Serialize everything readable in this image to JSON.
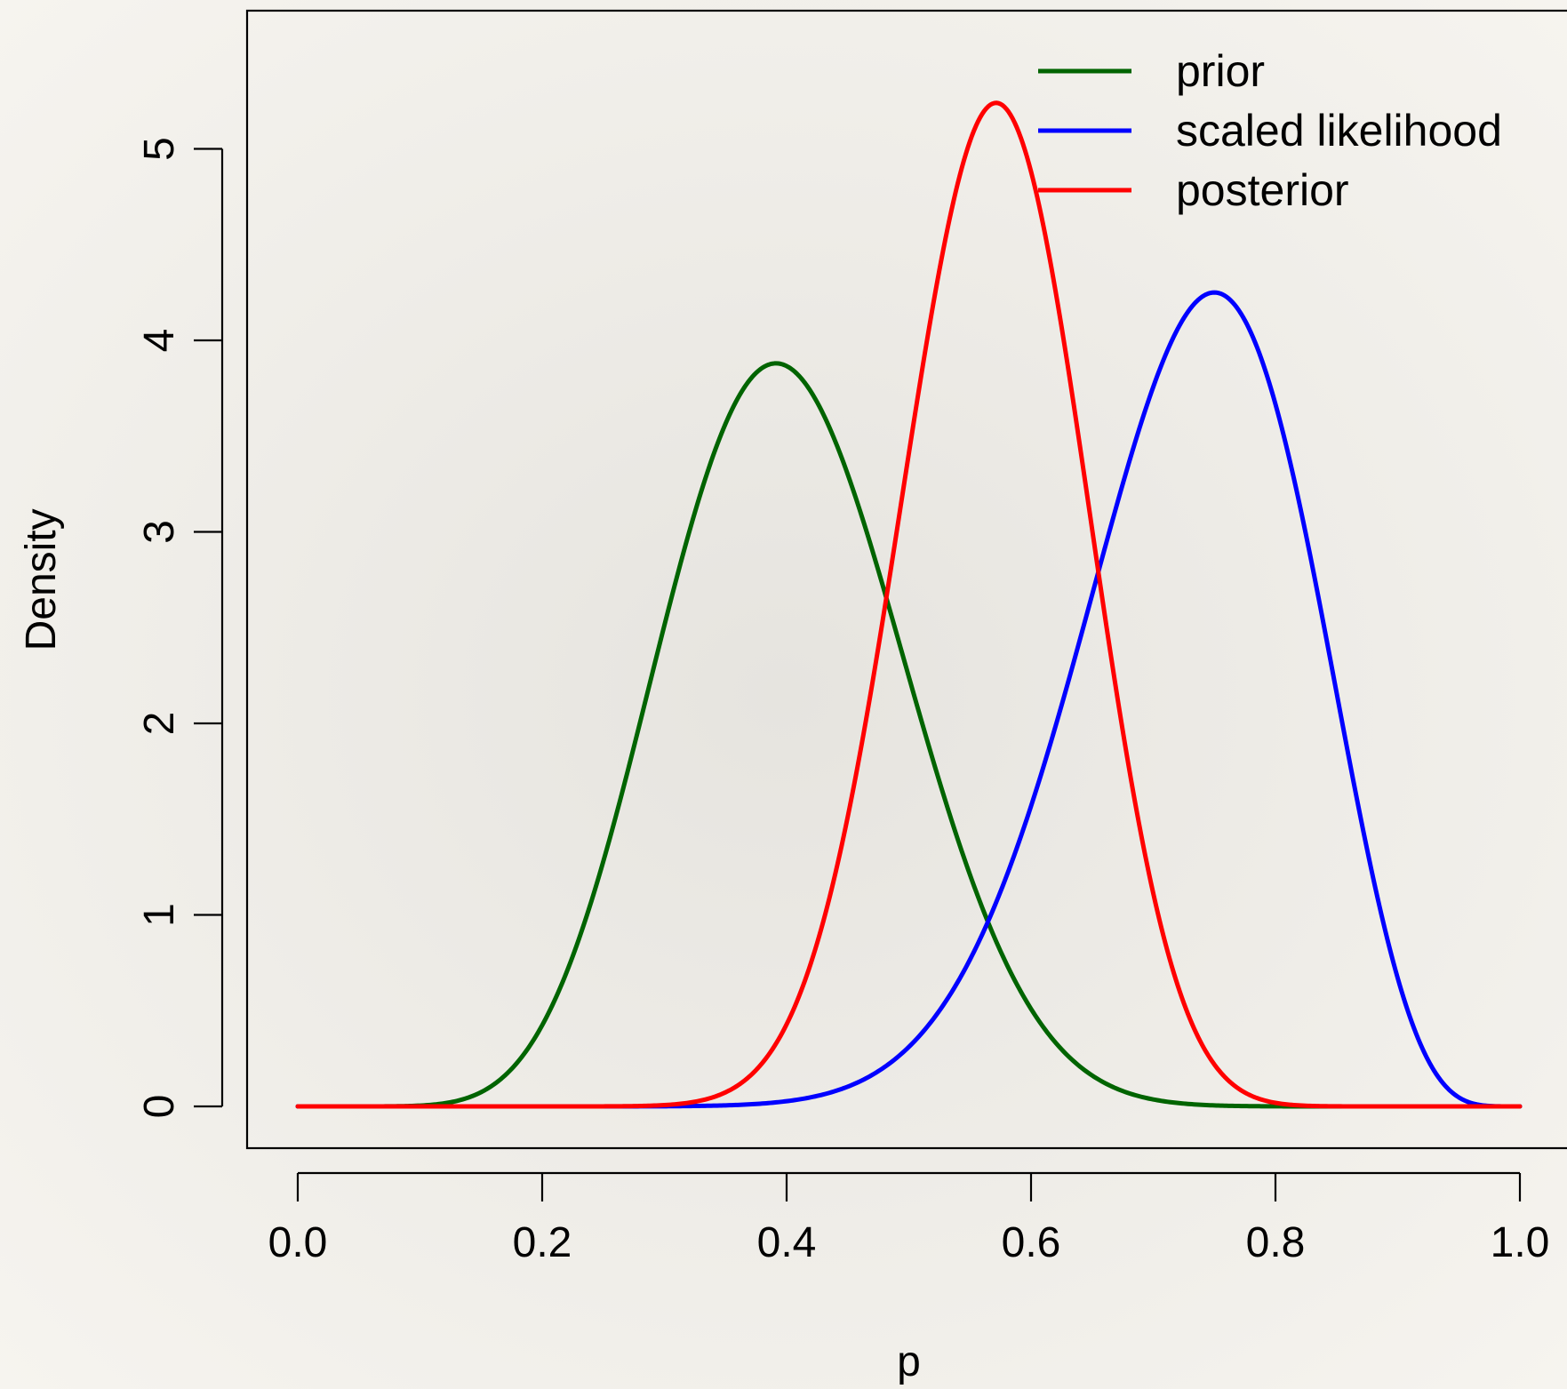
{
  "chart_data": {
    "type": "line",
    "title": "",
    "xlabel": "p",
    "ylabel": "Density",
    "xlim": [
      0.0,
      1.0
    ],
    "ylim": [
      0,
      5.5
    ],
    "xticks": [
      "0.0",
      "0.2",
      "0.4",
      "0.6",
      "0.8",
      "1.0"
    ],
    "yticks": [
      "0",
      "1",
      "2",
      "3",
      "4",
      "5"
    ],
    "grid": false,
    "legend_position": "top-right",
    "series": [
      {
        "name": "prior",
        "color": "#006400",
        "distribution": "beta",
        "alpha": 10,
        "beta": 15,
        "mode_x": 0.39,
        "peak_y": 3.88
      },
      {
        "name": "scaled likelihood",
        "color": "#0000ff",
        "distribution": "beta",
        "alpha": 16,
        "beta": 6,
        "mode_x": 0.75,
        "peak_y": 4.25
      },
      {
        "name": "posterior",
        "color": "#ff0000",
        "distribution": "beta",
        "alpha": 25,
        "beta": 19,
        "mode_x": 0.57,
        "peak_y": 5.24
      }
    ]
  }
}
